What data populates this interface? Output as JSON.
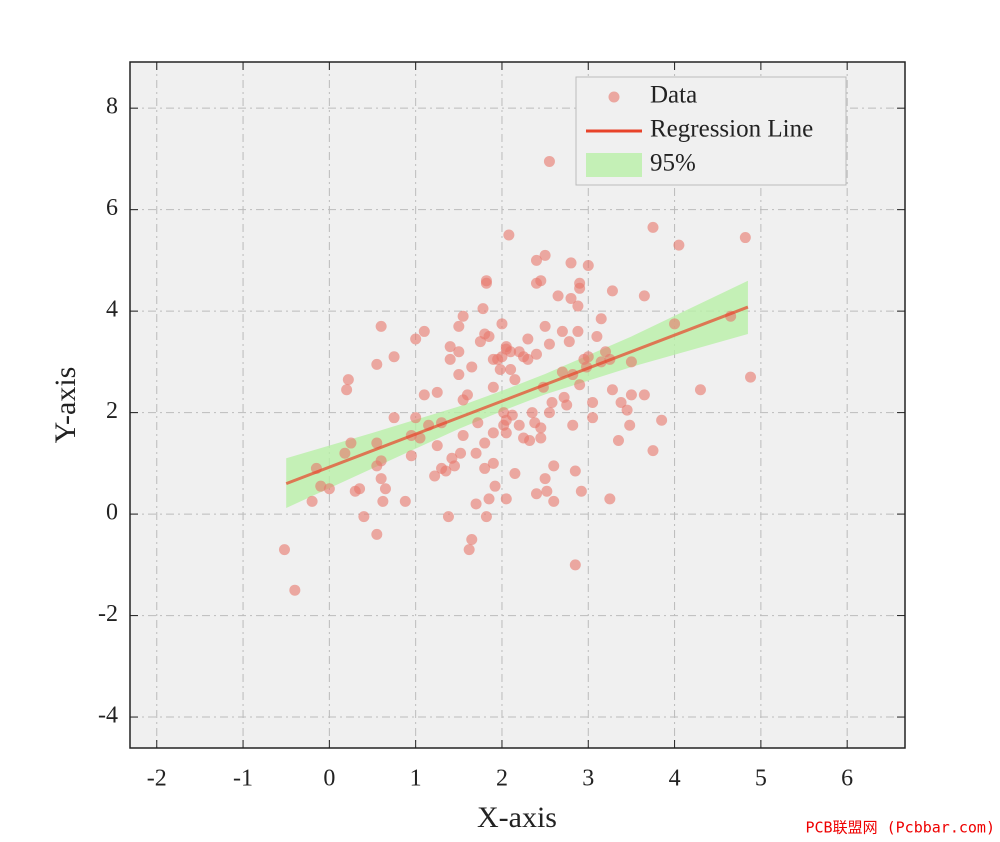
{
  "chart_data": {
    "type": "scatter",
    "xlabel": "X-axis",
    "ylabel": "Y-axis",
    "xlim": [
      -2.31,
      6.67
    ],
    "ylim": [
      -4.61,
      8.91
    ],
    "xticks": [
      -2,
      -1,
      0,
      1,
      2,
      3,
      4,
      5,
      6
    ],
    "yticks": [
      -4,
      -2,
      0,
      2,
      4,
      6,
      8
    ],
    "grid": true,
    "legend": "upper right",
    "series": [
      {
        "name": "Data",
        "type": "scatter",
        "color": "#e8776a",
        "x": [
          -0.52,
          -0.4,
          -0.2,
          -0.15,
          0,
          -0.1,
          0.2,
          0.22,
          0.25,
          0.18,
          0.3,
          0.35,
          0.4,
          0.55,
          0.6,
          0.55,
          0.55,
          0.6,
          0.6,
          0.62,
          0.55,
          0.65,
          0.75,
          0.75,
          0.88,
          0.95,
          0.95,
          1.0,
          1.0,
          1.05,
          1.1,
          1.1,
          1.15,
          1.22,
          1.25,
          1.25,
          1.3,
          1.3,
          1.35,
          1.38,
          1.4,
          1.4,
          1.42,
          1.45,
          1.5,
          1.5,
          1.5,
          1.52,
          1.55,
          1.55,
          1.55,
          1.6,
          1.62,
          1.65,
          1.65,
          1.7,
          1.7,
          1.72,
          1.75,
          1.78,
          1.8,
          1.82,
          1.82,
          1.8,
          1.8,
          1.82,
          1.85,
          1.85,
          1.9,
          1.9,
          1.9,
          1.9,
          1.92,
          1.95,
          1.98,
          2.0,
          2.0,
          2.02,
          2.02,
          2.05,
          2.05,
          2.05,
          2.05,
          2.05,
          2.08,
          2.1,
          2.1,
          2.12,
          2.15,
          2.15,
          2.2,
          2.2,
          2.25,
          2.25,
          2.3,
          2.3,
          2.32,
          2.35,
          2.38,
          2.4,
          2.4,
          2.4,
          2.4,
          2.45,
          2.45,
          2.45,
          2.48,
          2.5,
          2.5,
          2.5,
          2.52,
          2.55,
          2.55,
          2.55,
          2.58,
          2.6,
          2.6,
          2.65,
          2.7,
          2.7,
          2.72,
          2.75,
          2.78,
          2.8,
          2.8,
          2.82,
          2.82,
          2.85,
          2.85,
          2.88,
          2.88,
          2.9,
          2.9,
          2.9,
          2.92,
          2.95,
          2.98,
          3.0,
          3.0,
          3.05,
          3.05,
          3.1,
          3.15,
          3.15,
          3.2,
          3.25,
          3.25,
          3.28,
          3.28,
          3.35,
          3.38,
          3.45,
          3.48,
          3.5,
          3.5,
          3.65,
          3.65,
          3.75,
          3.75,
          3.85,
          4.0,
          4.05,
          4.3,
          4.65,
          4.82,
          4.88
        ],
        "values": [
          -0.7,
          -1.5,
          0.25,
          0.9,
          0.5,
          0.55,
          2.45,
          2.65,
          1.4,
          1.2,
          0.45,
          0.5,
          -0.05,
          2.95,
          3.7,
          1.4,
          0.95,
          1.05,
          0.7,
          0.25,
          -0.4,
          0.5,
          3.1,
          1.9,
          0.25,
          1.15,
          1.55,
          3.45,
          1.9,
          1.5,
          2.35,
          3.6,
          1.75,
          0.75,
          1.35,
          2.4,
          0.9,
          1.8,
          0.85,
          -0.05,
          3.3,
          3.05,
          1.1,
          0.95,
          3.7,
          3.2,
          2.75,
          1.2,
          3.9,
          2.25,
          1.55,
          2.35,
          -0.7,
          -0.5,
          2.9,
          1.2,
          0.2,
          1.8,
          3.4,
          4.05,
          3.55,
          4.55,
          4.6,
          1.4,
          0.9,
          -0.05,
          0.3,
          3.5,
          2.5,
          3.05,
          1.0,
          1.6,
          0.55,
          3.05,
          2.85,
          3.75,
          3.1,
          2.0,
          1.75,
          3.3,
          3.25,
          1.85,
          1.6,
          0.3,
          5.5,
          3.2,
          2.85,
          1.95,
          2.65,
          0.8,
          3.2,
          1.75,
          3.1,
          1.5,
          3.45,
          3.05,
          1.45,
          2.0,
          1.8,
          5.0,
          4.55,
          3.15,
          0.4,
          4.6,
          1.7,
          1.5,
          2.5,
          5.1,
          3.7,
          0.7,
          0.45,
          6.95,
          3.35,
          2.0,
          2.2,
          0.95,
          0.25,
          4.3,
          3.6,
          2.8,
          2.3,
          2.15,
          3.4,
          4.95,
          4.25,
          2.75,
          1.75,
          -1.0,
          0.85,
          4.1,
          3.6,
          4.55,
          4.45,
          2.55,
          0.45,
          3.05,
          2.9,
          4.9,
          3.1,
          2.2,
          1.9,
          3.5,
          3.85,
          3.0,
          3.2,
          3.05,
          0.3,
          4.4,
          2.45,
          1.45,
          2.2,
          2.05,
          1.75,
          3.0,
          2.35,
          4.3,
          2.35,
          5.65,
          1.25,
          1.85,
          3.75,
          5.3,
          2.45,
          3.9,
          5.45,
          2.7
        ]
      },
      {
        "name": "Regression Line",
        "type": "line",
        "color": "#e8432a",
        "x": [
          -0.5,
          4.85
        ],
        "values": [
          0.6,
          4.08
        ]
      },
      {
        "name": "95%",
        "type": "band",
        "color": "#b9f0a8",
        "x": [
          -0.5,
          0.5,
          1.5,
          2.0,
          2.5,
          3.5,
          4.85
        ],
        "lower": [
          0.12,
          0.9,
          1.68,
          2.03,
          2.36,
          2.9,
          3.55
        ],
        "upper": [
          1.1,
          1.6,
          2.12,
          2.43,
          2.76,
          3.5,
          4.6
        ]
      }
    ],
    "annotation": "PCB联盟网 (Pcbbar.com)"
  }
}
